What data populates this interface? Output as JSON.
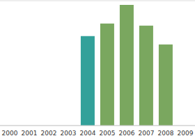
{
  "chart_data": {
    "type": "bar",
    "categories": [
      "2000",
      "2001",
      "2002",
      "2003",
      "2004",
      "2005",
      "2006",
      "2007",
      "2008",
      "2009"
    ],
    "values": [
      null,
      null,
      null,
      null,
      4.3,
      4.9,
      5.8,
      4.8,
      3.9,
      null
    ],
    "colors": [
      "#7aa75f",
      "#7aa75f",
      "#7aa75f",
      "#7aa75f",
      "#33a19a",
      "#7aa75f",
      "#7aa75f",
      "#7aa75f",
      "#7aa75f",
      "#7aa75f"
    ],
    "ylim": [
      0,
      6
    ],
    "yticks": [
      0,
      1,
      2,
      3,
      4,
      5,
      6
    ],
    "grid": true,
    "tick_labels": "x"
  }
}
